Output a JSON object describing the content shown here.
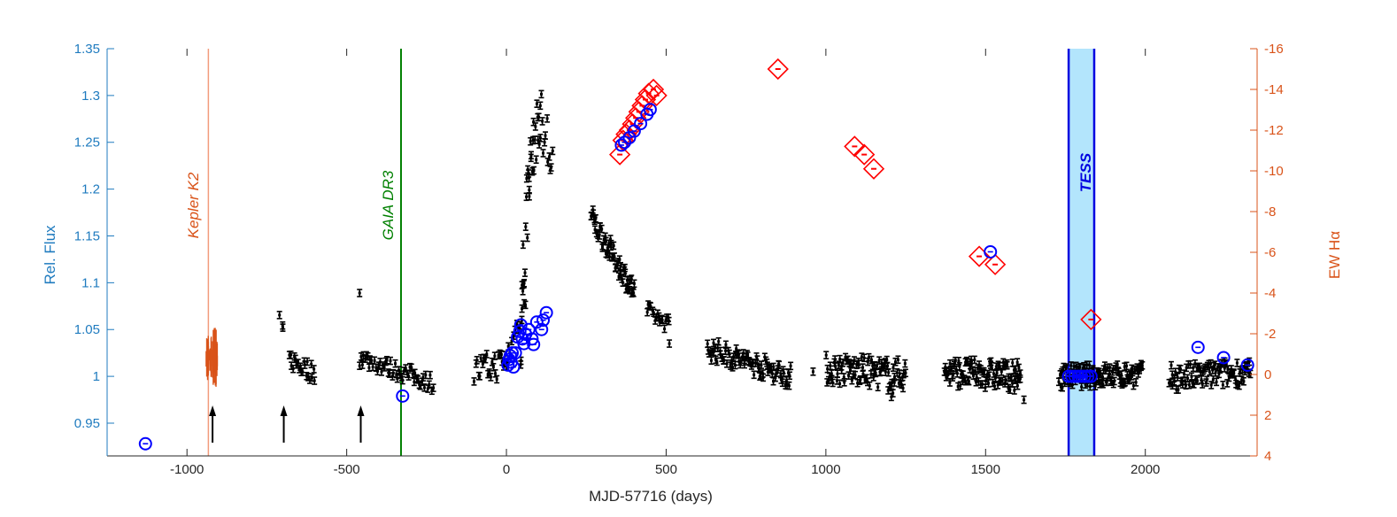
{
  "chart_data": {
    "type": "scatter",
    "xlabel": "MJD-57716 (days)",
    "ylabel_left": "Rel. Flux",
    "ylabel_right": "EW Hα",
    "xlim": [
      -1250,
      2350
    ],
    "ylim_left": [
      0.915,
      1.35
    ],
    "ylim_right": [
      4,
      -16
    ],
    "x_ticks": [
      -1000,
      -500,
      0,
      500,
      1000,
      1500,
      2000
    ],
    "y_left_ticks": [
      0.95,
      1,
      1.05,
      1.1,
      1.15,
      1.2,
      1.25,
      1.3,
      1.35
    ],
    "y_left_tick_labels": [
      "0.95",
      "1",
      "1.05",
      "1.1",
      "1.15",
      "1.2",
      "1.25",
      "1.3",
      "1.35"
    ],
    "y_right_ticks": [
      4,
      2,
      0,
      -2,
      -4,
      -6,
      -8,
      -10,
      -12,
      -14,
      -16
    ],
    "colors": {
      "left_axis": "#1f7bbf",
      "right_axis": "#d95319",
      "photometry": "#000000",
      "kepler": "#d95319",
      "gaia": "#008000",
      "tess": "#0000e0",
      "tess_band": "#b3e5fc",
      "halpha": "#ff0000",
      "blue_circles": "#0000ff",
      "arrows": "#000000"
    },
    "annotations": {
      "kepler": {
        "label": "Kepler K2",
        "x": -933
      },
      "gaia": {
        "label": "GAIA DR3",
        "x": -330
      },
      "tess": {
        "label": "TESS",
        "x_range": [
          1760,
          1840
        ]
      }
    },
    "arrows_x": [
      -920,
      -697,
      -456
    ],
    "kepler_range": [
      -940,
      -905,
      0.995,
      1.065
    ],
    "series": [
      {
        "marker": "black error bars",
        "segments": [
          {
            "x0": -710,
            "x1": -700,
            "y0": 1.068,
            "y1": 1.052,
            "n": 2,
            "scatter": 0.003
          },
          {
            "x0": -680,
            "x1": -600,
            "y0": 1.018,
            "y1": 1.003,
            "n": 22,
            "scatter": 0.01
          },
          {
            "x0": -460,
            "x1": -230,
            "y0": 1.02,
            "y1": 0.993,
            "n": 55,
            "scatter": 0.009
          },
          {
            "x0": -460,
            "x1": -460,
            "y0": 1.089,
            "y1": 1.089,
            "n": 1,
            "scatter": 0.0
          },
          {
            "x0": -100,
            "x1": 0,
            "y0": 1.005,
            "y1": 1.015,
            "n": 25,
            "scatter": 0.016
          },
          {
            "x0": 0,
            "x1": 60,
            "y0": 1.02,
            "y1": 1.08,
            "n": 12,
            "scatter": 0.012
          },
          {
            "x0": 45,
            "x1": 70,
            "y0": 1.05,
            "y1": 1.22,
            "n": 16,
            "scatter": 0.05
          },
          {
            "x0": 70,
            "x1": 105,
            "y0": 1.22,
            "y1": 1.28,
            "n": 18,
            "scatter": 0.03
          },
          {
            "x0": 105,
            "x1": 145,
            "y0": 1.27,
            "y1": 1.23,
            "n": 12,
            "scatter": 0.04
          },
          {
            "x0": 265,
            "x1": 400,
            "y0": 1.17,
            "y1": 1.09,
            "n": 60,
            "scatter": 0.012
          },
          {
            "x0": 440,
            "x1": 510,
            "y0": 1.07,
            "y1": 1.055,
            "n": 18,
            "scatter": 0.008
          },
          {
            "x0": 630,
            "x1": 890,
            "y0": 1.03,
            "y1": 1.0,
            "n": 90,
            "scatter": 0.012
          },
          {
            "x0": 1000,
            "x1": 1250,
            "y0": 1.008,
            "y1": 1.002,
            "n": 90,
            "scatter": 0.016
          },
          {
            "x0": 1370,
            "x1": 1610,
            "y0": 1.005,
            "y1": 1.0,
            "n": 100,
            "scatter": 0.015
          },
          {
            "x0": 1730,
            "x1": 1990,
            "y0": 1.0,
            "y1": 1.002,
            "n": 110,
            "scatter": 0.012
          },
          {
            "x0": 2075,
            "x1": 2330,
            "y0": 0.998,
            "y1": 1.005,
            "n": 90,
            "scatter": 0.014
          }
        ],
        "extra_points": [
          [
            -700,
            1.052
          ],
          [
            510,
            1.035
          ],
          [
            1205,
            0.978
          ],
          [
            1195,
            0.985
          ],
          [
            1210,
            0.982
          ],
          [
            1590,
            0.985
          ],
          [
            1620,
            0.975
          ],
          [
            1600,
            0.99
          ],
          [
            885,
            0.99
          ],
          [
            960,
            1.005
          ]
        ]
      },
      {
        "marker": "blue circles",
        "points": [
          [
            -1130,
            0.928
          ],
          [
            -325,
            0.979
          ],
          [
            5,
            1.012
          ],
          [
            8,
            1.018
          ],
          [
            12,
            1.022
          ],
          [
            15,
            1.015
          ],
          [
            18,
            1.025
          ],
          [
            22,
            1.01
          ],
          [
            28,
            1.025
          ],
          [
            35,
            1.042
          ],
          [
            42,
            1.048
          ],
          [
            45,
            1.055
          ],
          [
            50,
            1.04
          ],
          [
            55,
            1.035
          ],
          [
            60,
            1.045
          ],
          [
            70,
            1.05
          ],
          [
            80,
            1.04
          ],
          [
            85,
            1.034
          ],
          [
            95,
            1.058
          ],
          [
            110,
            1.05
          ],
          [
            115,
            1.06
          ],
          [
            125,
            1.068
          ],
          [
            360,
            1.247
          ],
          [
            370,
            1.25
          ],
          [
            385,
            1.255
          ],
          [
            400,
            1.262
          ],
          [
            420,
            1.27
          ],
          [
            440,
            1.28
          ],
          [
            450,
            1.285
          ],
          [
            1515,
            1.133
          ],
          [
            1760,
            1.0
          ],
          [
            1770,
            1.0
          ],
          [
            1780,
            1.0
          ],
          [
            1790,
            1.0
          ],
          [
            1800,
            1.0
          ],
          [
            1810,
            1.0
          ],
          [
            1820,
            1.0
          ],
          [
            1830,
            1.0
          ],
          [
            2165,
            1.031
          ],
          [
            2245,
            1.02
          ],
          [
            2320,
            1.012
          ]
        ]
      },
      {
        "name": "EW Hα",
        "marker": "red diamonds",
        "points": [
          [
            355,
            -10.8
          ],
          [
            365,
            -11.5
          ],
          [
            375,
            -11.8
          ],
          [
            385,
            -12.0
          ],
          [
            395,
            -12.3
          ],
          [
            405,
            -12.6
          ],
          [
            415,
            -12.9
          ],
          [
            425,
            -13.2
          ],
          [
            435,
            -13.5
          ],
          [
            445,
            -13.8
          ],
          [
            460,
            -14.0
          ],
          [
            470,
            -13.7
          ],
          [
            850,
            -15.0
          ],
          [
            1090,
            -11.2
          ],
          [
            1120,
            -10.8
          ],
          [
            1150,
            -10.1
          ],
          [
            1480,
            -5.8
          ],
          [
            1530,
            -5.4
          ],
          [
            1830,
            -2.7
          ]
        ]
      }
    ]
  }
}
